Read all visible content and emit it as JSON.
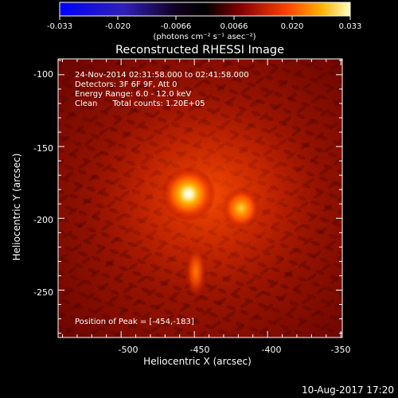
{
  "colorbar": {
    "ticks": [
      "-0.033",
      "-0.020",
      "-0.0066",
      "0.0066",
      "0.020",
      "0.033"
    ],
    "unit_label": "(photons cm⁻² s⁻¹ asec⁻²)",
    "range": [
      -0.033,
      0.033
    ],
    "colormap": [
      "#0000ff",
      "#2a0aa0",
      "#000000",
      "#b00000",
      "#ff7000",
      "#ffff80"
    ]
  },
  "plot": {
    "title": "Reconstructed RHESSI Image",
    "xlabel": "Heliocentric X (arcsec)",
    "ylabel": "Heliocentric Y (arcsec)",
    "xticks": [
      "-500",
      "-450",
      "-400",
      "-350"
    ],
    "yticks": [
      "-100",
      "-150",
      "-200",
      "-250"
    ]
  },
  "annotations": {
    "line1": "24-Nov-2014 02:31:58.000 to 02:41:58.000",
    "line2": "Detectors: 3F 6F 9F, Att 0",
    "line3": "Energy Range: 6.0 - 12.0 keV",
    "line4": "Clean      Total counts: 1.20E+05",
    "peak": "Position of Peak = [-454,-183]"
  },
  "timestamp": "10-Aug-2017 17:20",
  "chart_data": {
    "type": "heatmap",
    "title": "Reconstructed RHESSI Image",
    "xlabel": "Heliocentric X (arcsec)",
    "ylabel": "Heliocentric Y (arcsec)",
    "xlim": [
      -543,
      -349
    ],
    "ylim": [
      -283,
      -89
    ],
    "value_range": [
      -0.033,
      0.033
    ],
    "grid": false,
    "sources": [
      {
        "x": -454,
        "y": -183,
        "amplitude": 0.033
      },
      {
        "x": -418,
        "y": -193,
        "amplitude": 0.024
      },
      {
        "x": -449,
        "y": -237,
        "amplitude": 0.014
      }
    ]
  }
}
